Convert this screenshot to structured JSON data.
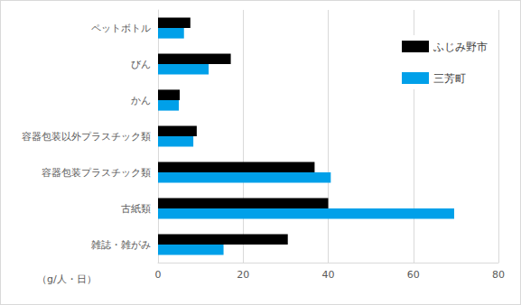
{
  "chart_data": {
    "type": "bar",
    "orientation": "horizontal",
    "x_label": "（g/人・日）",
    "categories": [
      "ペットボトル",
      "びん",
      "かん",
      "容器包装以外プラスチック類",
      "容器包装プラスチック類",
      "古紙類",
      "雑誌・雑がみ"
    ],
    "series": [
      {
        "name": "ふじみ野市",
        "color": "#000000",
        "values": [
          7.6,
          17.1,
          5.1,
          9.1,
          36.8,
          40.0,
          30.5
        ]
      },
      {
        "name": "三芳町",
        "color": "#00a0e9",
        "values": [
          6.1,
          11.9,
          4.9,
          8.3,
          40.6,
          69.6,
          15.4
        ]
      }
    ],
    "xlim": [
      0,
      80
    ],
    "xticks": [
      0,
      20,
      40,
      60,
      80
    ],
    "grid": true,
    "legend": "upper right"
  }
}
